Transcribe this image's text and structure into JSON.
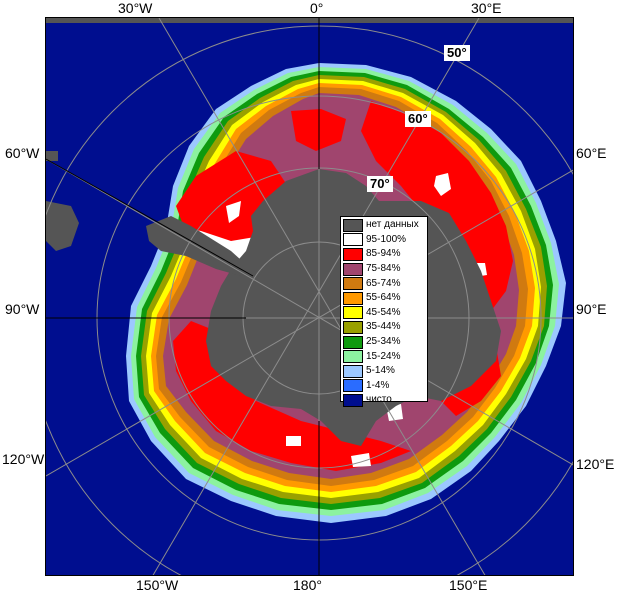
{
  "colors": {
    "open_water": "#000e8f",
    "land": "#555555",
    "no_data": "#555555",
    "band_95_100": "#ffffff",
    "band_85_94": "#ff0000",
    "band_75_84": "#a0456e",
    "band_65_74": "#d07a10",
    "band_55_64": "#ff9900",
    "band_45_54": "#ffff00",
    "band_35_44": "#99a000",
    "band_25_34": "#0e9a0e",
    "band_15_24": "#8cf2a0",
    "band_5_14": "#9cc8ff",
    "band_1_4": "#2a6cff",
    "clear": "#000e8f",
    "grid": "#8c8c8c"
  },
  "longitude_labels": {
    "top_30w": "30°W",
    "top_0": "0°",
    "top_30e": "30°E",
    "left_60w": "60°W",
    "left_90w": "90°W",
    "left_120w": "120°W",
    "right_60e": "60°E",
    "right_90e": "90°E",
    "right_120e": "120°E",
    "bottom_150w": "150°W",
    "bottom_180": "180°",
    "bottom_150e": "150°E"
  },
  "latitude_labels": {
    "lat_50": "50°",
    "lat_60": "60°",
    "lat_70": "70°"
  },
  "legend": [
    {
      "label": "нет данных",
      "color": "#555555"
    },
    {
      "label": "95-100%",
      "color": "#ffffff"
    },
    {
      "label": "85-94%",
      "color": "#ff0000"
    },
    {
      "label": "75-84%",
      "color": "#a0456e"
    },
    {
      "label": "65-74%",
      "color": "#d07a10"
    },
    {
      "label": "55-64%",
      "color": "#ff9900"
    },
    {
      "label": "45-54%",
      "color": "#ffff00"
    },
    {
      "label": "35-44%",
      "color": "#99a000"
    },
    {
      "label": "25-34%",
      "color": "#0e9a0e"
    },
    {
      "label": "15-24%",
      "color": "#8cf2a0"
    },
    {
      "label": "5-14%",
      "color": "#9cc8ff"
    },
    {
      "label": "1-4%",
      "color": "#2a6cff"
    },
    {
      "label": "чисто",
      "color": "#000e8f"
    }
  ]
}
